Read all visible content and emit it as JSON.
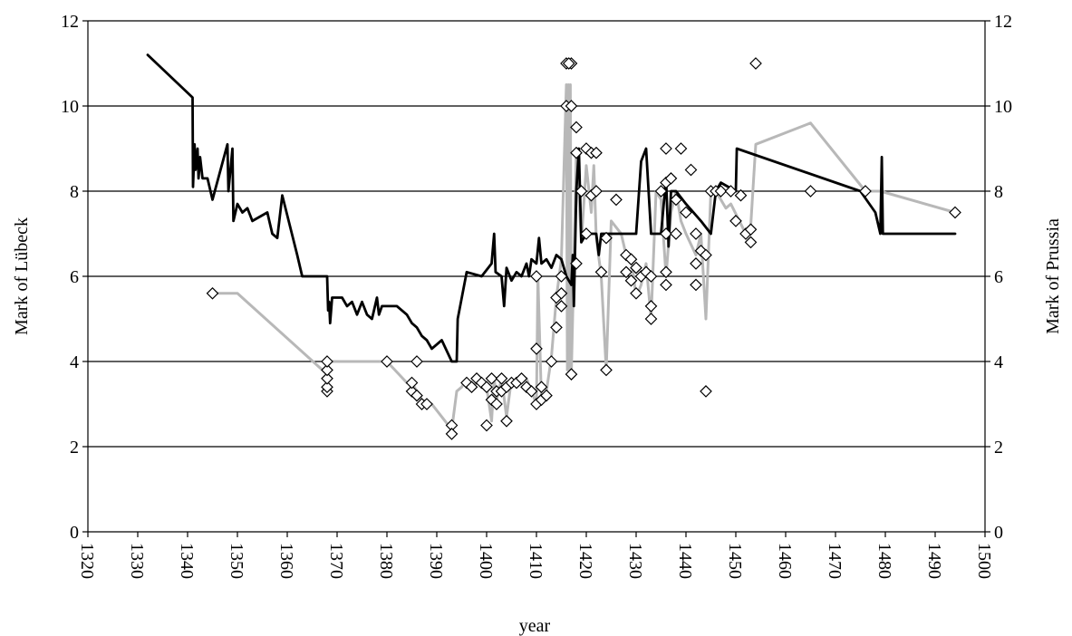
{
  "chart_data": {
    "type": "line",
    "xlabel": "year",
    "ylabel_left": "Mark of Lübeck",
    "ylabel_right": "Mark of Prussia",
    "xlim": [
      1320,
      1500
    ],
    "ylim": [
      0,
      12
    ],
    "x_ticks": [
      "1320",
      "1330",
      "1340",
      "1350",
      "1360",
      "1370",
      "1380",
      "1390",
      "1400",
      "1410",
      "1420",
      "1430",
      "1440",
      "1450",
      "1460",
      "1470",
      "1480",
      "1490",
      "1500"
    ],
    "y_ticks": [
      "0",
      "2",
      "4",
      "6",
      "8",
      "10",
      "12"
    ],
    "grid": "horizontal",
    "legend": "none",
    "colors": {
      "lubeck": "#000000",
      "prussia": "#b8b8b8",
      "markers": "#000000",
      "grid": "#000000"
    },
    "series": [
      {
        "color": "#000000",
        "points": [
          [
            1332,
            11.2
          ],
          [
            1341,
            10.2
          ],
          [
            1341.1,
            8.1
          ],
          [
            1341.4,
            9.1
          ],
          [
            1341.6,
            8.5
          ],
          [
            1342,
            9.0
          ],
          [
            1342.2,
            8.3
          ],
          [
            1342.5,
            8.8
          ],
          [
            1343,
            8.3
          ],
          [
            1344,
            8.3
          ],
          [
            1345,
            7.8
          ],
          [
            1348,
            9.1
          ],
          [
            1348.2,
            8.0
          ],
          [
            1349,
            9.0
          ],
          [
            1349.2,
            7.3
          ],
          [
            1350,
            7.7
          ],
          [
            1351,
            7.5
          ],
          [
            1352,
            7.6
          ],
          [
            1353,
            7.3
          ],
          [
            1356,
            7.5
          ],
          [
            1357,
            7.0
          ],
          [
            1358,
            6.9
          ],
          [
            1359,
            7.9
          ],
          [
            1362,
            6.5
          ],
          [
            1363,
            6.0
          ],
          [
            1368,
            6.0
          ],
          [
            1368.2,
            5.2
          ],
          [
            1368.4,
            5.4
          ],
          [
            1368.6,
            4.9
          ],
          [
            1369,
            5.5
          ],
          [
            1371,
            5.5
          ],
          [
            1372,
            5.3
          ],
          [
            1373,
            5.4
          ],
          [
            1374,
            5.1
          ],
          [
            1375,
            5.4
          ],
          [
            1376,
            5.1
          ],
          [
            1377,
            5.0
          ],
          [
            1378,
            5.5
          ],
          [
            1378.4,
            5.1
          ],
          [
            1379,
            5.3
          ],
          [
            1382,
            5.3
          ],
          [
            1384,
            5.1
          ],
          [
            1385,
            4.9
          ],
          [
            1386,
            4.8
          ],
          [
            1387,
            4.6
          ],
          [
            1388,
            4.5
          ],
          [
            1389,
            4.3
          ],
          [
            1391,
            4.5
          ],
          [
            1393,
            4.0
          ],
          [
            1394,
            4.0
          ],
          [
            1394.2,
            5.0
          ],
          [
            1396,
            6.1
          ],
          [
            1399,
            6.0
          ],
          [
            1401,
            6.3
          ],
          [
            1401.5,
            7.0
          ],
          [
            1401.8,
            6.1
          ],
          [
            1403,
            6.0
          ],
          [
            1403.5,
            5.3
          ],
          [
            1404,
            6.2
          ],
          [
            1405,
            5.9
          ],
          [
            1406,
            6.1
          ],
          [
            1407,
            6.0
          ],
          [
            1408,
            6.3
          ],
          [
            1408.5,
            6.0
          ],
          [
            1409,
            6.4
          ],
          [
            1410,
            6.3
          ],
          [
            1410.5,
            6.9
          ],
          [
            1411,
            6.3
          ],
          [
            1412,
            6.4
          ],
          [
            1413,
            6.2
          ],
          [
            1414,
            6.5
          ],
          [
            1415,
            6.4
          ],
          [
            1416,
            6.0
          ],
          [
            1417,
            5.8
          ],
          [
            1417.3,
            6.5
          ],
          [
            1417.5,
            5.3
          ],
          [
            1418,
            8.0
          ],
          [
            1418.5,
            9.0
          ],
          [
            1419,
            6.8
          ],
          [
            1420,
            7.0
          ],
          [
            1422,
            7.0
          ],
          [
            1422.5,
            6.5
          ],
          [
            1423,
            7.0
          ],
          [
            1424,
            7.0
          ],
          [
            1430,
            7.0
          ],
          [
            1431,
            8.7
          ],
          [
            1432,
            9.0
          ],
          [
            1433,
            7.0
          ],
          [
            1435,
            7.0
          ],
          [
            1436,
            8.3
          ],
          [
            1436.5,
            6.7
          ],
          [
            1437,
            8.0
          ],
          [
            1438,
            8.0
          ],
          [
            1440,
            7.7
          ],
          [
            1443,
            7.3
          ],
          [
            1445,
            7.0
          ],
          [
            1446,
            8.0
          ],
          [
            1447,
            8.2
          ],
          [
            1450,
            8.0
          ],
          [
            1450.2,
            9.0
          ],
          [
            1475,
            8.0
          ],
          [
            1478,
            7.5
          ],
          [
            1479,
            7.0
          ],
          [
            1479.3,
            8.8
          ],
          [
            1479.5,
            7.0
          ],
          [
            1494,
            7.0
          ]
        ]
      },
      {
        "color": "#b8b8b8",
        "points": [
          [
            1345,
            5.6
          ],
          [
            1350,
            5.6
          ],
          [
            1368,
            3.7
          ],
          [
            1368.3,
            4.0
          ],
          [
            1380,
            4.0
          ],
          [
            1384,
            3.5
          ],
          [
            1385,
            3.5
          ],
          [
            1386,
            3.3
          ],
          [
            1387,
            3.1
          ],
          [
            1389,
            3.0
          ],
          [
            1391,
            2.7
          ],
          [
            1393,
            2.4
          ],
          [
            1394,
            3.3
          ],
          [
            1395,
            3.4
          ],
          [
            1396,
            3.6
          ],
          [
            1397,
            3.4
          ],
          [
            1398,
            3.5
          ],
          [
            1399,
            3.6
          ],
          [
            1400,
            3.4
          ],
          [
            1401,
            2.6
          ],
          [
            1401.5,
            3.6
          ],
          [
            1402,
            3.1
          ],
          [
            1403,
            3.6
          ],
          [
            1404,
            2.7
          ],
          [
            1405,
            3.6
          ],
          [
            1406,
            3.4
          ],
          [
            1407,
            3.5
          ],
          [
            1408,
            3.6
          ],
          [
            1409,
            3.3
          ],
          [
            1410,
            3.0
          ],
          [
            1410.3,
            6.0
          ],
          [
            1411,
            3.1
          ],
          [
            1412,
            3.3
          ],
          [
            1413,
            4.1
          ],
          [
            1414,
            5.5
          ],
          [
            1415,
            6.4
          ],
          [
            1416,
            10.5
          ],
          [
            1416.2,
            3.8
          ],
          [
            1416.4,
            10.5
          ],
          [
            1416.6,
            3.8
          ],
          [
            1416.8,
            10.5
          ],
          [
            1417,
            3.7
          ],
          [
            1417.5,
            6.3
          ],
          [
            1418,
            9.0
          ],
          [
            1419,
            6.8
          ],
          [
            1420,
            8.6
          ],
          [
            1421,
            7.5
          ],
          [
            1421.5,
            8.6
          ],
          [
            1422,
            6.9
          ],
          [
            1423,
            6.0
          ],
          [
            1424,
            3.8
          ],
          [
            1425,
            7.3
          ],
          [
            1427,
            7.0
          ],
          [
            1428,
            6.5
          ],
          [
            1429,
            6.5
          ],
          [
            1430,
            5.5
          ],
          [
            1431,
            5.8
          ],
          [
            1432,
            6.3
          ],
          [
            1433,
            5.0
          ],
          [
            1434,
            8.0
          ],
          [
            1435,
            7.8
          ],
          [
            1436,
            6.0
          ],
          [
            1437,
            7.5
          ],
          [
            1438,
            8.0
          ],
          [
            1439,
            7.3
          ],
          [
            1440,
            7.0
          ],
          [
            1442,
            6.5
          ],
          [
            1443,
            7.0
          ],
          [
            1444,
            5.0
          ],
          [
            1445,
            8.0
          ],
          [
            1446,
            8.0
          ],
          [
            1448,
            7.6
          ],
          [
            1449,
            7.7
          ],
          [
            1452,
            7.0
          ],
          [
            1453,
            7.2
          ],
          [
            1454,
            9.1
          ],
          [
            1465,
            9.6
          ],
          [
            1476,
            8.0
          ],
          [
            1479,
            8.0
          ],
          [
            1494,
            7.5
          ]
        ]
      }
    ],
    "markers": [
      [
        1345,
        5.6
      ],
      [
        1368,
        3.3
      ],
      [
        1368,
        3.4
      ],
      [
        1368,
        3.6
      ],
      [
        1368,
        3.8
      ],
      [
        1368,
        4.0
      ],
      [
        1380,
        4.0
      ],
      [
        1385,
        3.3
      ],
      [
        1385,
        3.5
      ],
      [
        1386,
        4.0
      ],
      [
        1386,
        3.2
      ],
      [
        1387,
        3.0
      ],
      [
        1388,
        3.0
      ],
      [
        1393,
        2.5
      ],
      [
        1393,
        2.3
      ],
      [
        1396,
        3.5
      ],
      [
        1397,
        3.4
      ],
      [
        1398,
        3.6
      ],
      [
        1399,
        3.5
      ],
      [
        1400,
        2.5
      ],
      [
        1400,
        3.4
      ],
      [
        1401,
        3.6
      ],
      [
        1401,
        3.1
      ],
      [
        1402,
        3.0
      ],
      [
        1402,
        3.3
      ],
      [
        1403,
        3.6
      ],
      [
        1403,
        3.3
      ],
      [
        1404,
        2.6
      ],
      [
        1404,
        3.4
      ],
      [
        1405,
        3.5
      ],
      [
        1406,
        3.5
      ],
      [
        1407,
        3.6
      ],
      [
        1408,
        3.4
      ],
      [
        1409,
        3.3
      ],
      [
        1410,
        4.3
      ],
      [
        1410,
        3.0
      ],
      [
        1410,
        6.0
      ],
      [
        1411,
        3.1
      ],
      [
        1411,
        3.4
      ],
      [
        1412,
        3.2
      ],
      [
        1413,
        4.0
      ],
      [
        1414,
        4.8
      ],
      [
        1414,
        5.5
      ],
      [
        1415,
        5.3
      ],
      [
        1415,
        5.6
      ],
      [
        1415,
        6.0
      ],
      [
        1416,
        10.0
      ],
      [
        1416,
        11.0
      ],
      [
        1417,
        11.0
      ],
      [
        1416.5,
        11.0
      ],
      [
        1417,
        3.7
      ],
      [
        1417,
        10.0
      ],
      [
        1418,
        9.5
      ],
      [
        1418,
        8.9
      ],
      [
        1418,
        6.3
      ],
      [
        1419,
        8.0
      ],
      [
        1420,
        9.0
      ],
      [
        1420,
        7.0
      ],
      [
        1421,
        8.9
      ],
      [
        1421,
        7.9
      ],
      [
        1422,
        8.0
      ],
      [
        1422,
        8.9
      ],
      [
        1423,
        6.1
      ],
      [
        1424,
        3.8
      ],
      [
        1424,
        6.9
      ],
      [
        1426,
        7.8
      ],
      [
        1428,
        6.5
      ],
      [
        1428,
        6.1
      ],
      [
        1429,
        5.9
      ],
      [
        1429,
        6.4
      ],
      [
        1430,
        5.6
      ],
      [
        1430,
        6.2
      ],
      [
        1431,
        6.0
      ],
      [
        1432,
        6.1
      ],
      [
        1433,
        5.0
      ],
      [
        1433,
        5.3
      ],
      [
        1433,
        6.0
      ],
      [
        1435,
        8.0
      ],
      [
        1436,
        9.0
      ],
      [
        1436,
        8.2
      ],
      [
        1436,
        7.0
      ],
      [
        1436,
        6.1
      ],
      [
        1436,
        5.8
      ],
      [
        1437,
        8.3
      ],
      [
        1438,
        7.0
      ],
      [
        1438,
        7.8
      ],
      [
        1439,
        9.0
      ],
      [
        1440,
        7.5
      ],
      [
        1441,
        8.5
      ],
      [
        1442,
        6.3
      ],
      [
        1442,
        5.8
      ],
      [
        1442,
        7.0
      ],
      [
        1443,
        6.6
      ],
      [
        1444,
        3.3
      ],
      [
        1444,
        6.5
      ],
      [
        1445,
        8.0
      ],
      [
        1446,
        8.0
      ],
      [
        1447,
        8.0
      ],
      [
        1449,
        8.0
      ],
      [
        1450,
        7.3
      ],
      [
        1451,
        7.9
      ],
      [
        1452,
        7.0
      ],
      [
        1453,
        6.8
      ],
      [
        1453,
        7.1
      ],
      [
        1454,
        11.0
      ],
      [
        1465,
        8.0
      ],
      [
        1476,
        8.0
      ],
      [
        1494,
        7.5
      ]
    ]
  }
}
